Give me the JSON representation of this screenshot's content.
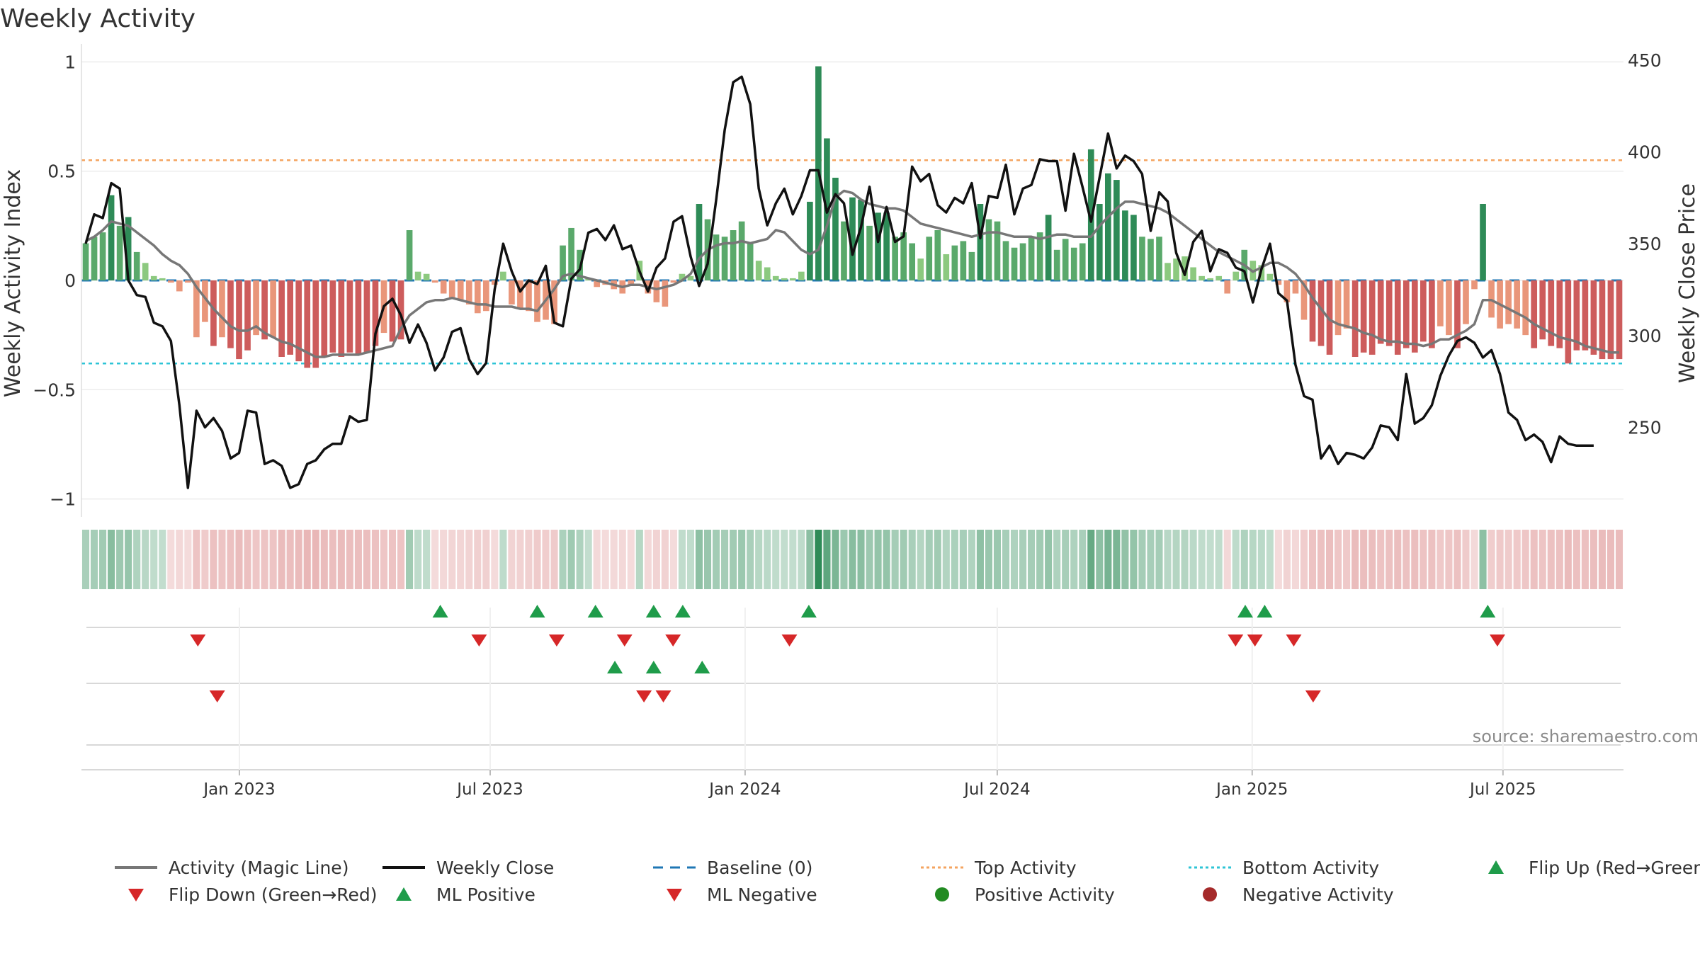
{
  "chart_data": {
    "type": "bar",
    "title": "Weekly Activity",
    "ylabel": "Weekly Activity Index",
    "y2label": "Weekly Close Price",
    "ylim": [
      -1.05,
      1.05
    ],
    "y2lim": [
      205,
      455
    ],
    "yticks": [
      1,
      0.5,
      0,
      -0.5,
      -1
    ],
    "ytick_labels": [
      "1",
      "0.5",
      "0",
      "−0.5",
      "−1"
    ],
    "y2ticks": [
      450,
      400,
      350,
      300,
      250
    ],
    "x_start": "2022-09-09",
    "x_end": "2025-09-26",
    "xticks": [
      {
        "date": "2023-01-01",
        "label": "Jan 2023"
      },
      {
        "date": "2023-07-01",
        "label": "Jul 2023"
      },
      {
        "date": "2024-01-01",
        "label": "Jan 2024"
      },
      {
        "date": "2024-07-01",
        "label": "Jul 2024"
      },
      {
        "date": "2025-01-01",
        "label": "Jan 2025"
      },
      {
        "date": "2025-07-01",
        "label": "Jul 2025"
      }
    ],
    "reference_lines": {
      "baseline": 0,
      "top_activity": 0.55,
      "bottom_activity": -0.38
    },
    "colors": {
      "pos_strong": "#2e8b57",
      "pos_mid": "#5aa96b",
      "pos_light": "#8cc97f",
      "neg_strong": "#cd5c5c",
      "neg_light": "#e9967a",
      "magic_line": "#777777",
      "close_line": "#111111",
      "baseline": "#1f77b4",
      "top": "#f4a460",
      "bottom": "#2ec4d6",
      "flip_up": "#1f9c4a",
      "flip_down": "#d62728",
      "pos_activity": "#228b22",
      "neg_activity": "#a52a2a"
    },
    "series": [
      {
        "name": "Weekly Activity Index",
        "type": "bar",
        "values": [
          0.17,
          0.2,
          0.22,
          0.39,
          0.25,
          0.29,
          0.13,
          0.08,
          0.02,
          0.01,
          -0.01,
          -0.05,
          -0.01,
          -0.26,
          -0.19,
          -0.3,
          -0.26,
          -0.31,
          -0.36,
          -0.32,
          -0.25,
          -0.27,
          -0.26,
          -0.35,
          -0.34,
          -0.37,
          -0.4,
          -0.4,
          -0.35,
          -0.33,
          -0.35,
          -0.33,
          -0.34,
          -0.33,
          -0.3,
          -0.24,
          -0.28,
          -0.27,
          0.23,
          0.04,
          0.03,
          -0.01,
          -0.06,
          -0.08,
          -0.09,
          -0.11,
          -0.15,
          -0.14,
          -0.02,
          0.04,
          -0.11,
          -0.13,
          -0.14,
          -0.19,
          -0.18,
          -0.2,
          0.16,
          0.24,
          0.14,
          0.01,
          -0.03,
          -0.02,
          -0.04,
          -0.06,
          -0.02,
          0.09,
          -0.06,
          -0.1,
          -0.12,
          -0.01,
          0.03,
          0.02,
          0.35,
          0.28,
          0.21,
          0.2,
          0.23,
          0.27,
          0.17,
          0.09,
          0.06,
          0.02,
          0.01,
          0.01,
          0.04,
          0.36,
          0.98,
          0.65,
          0.47,
          0.27,
          0.38,
          0.37,
          0.25,
          0.31,
          0.31,
          0.2,
          0.22,
          0.17,
          0.1,
          0.2,
          0.23,
          0.12,
          0.16,
          0.18,
          0.13,
          0.35,
          0.28,
          0.27,
          0.18,
          0.15,
          0.17,
          0.2,
          0.22,
          0.3,
          0.14,
          0.19,
          0.15,
          0.17,
          0.6,
          0.35,
          0.49,
          0.46,
          0.32,
          0.3,
          0.2,
          0.19,
          0.2,
          0.08,
          0.1,
          0.11,
          0.06,
          0.02,
          0.01,
          0.02,
          -0.06,
          0.04,
          0.14,
          0.09,
          0.07,
          0.03,
          -0.02,
          -0.1,
          -0.06,
          -0.18,
          -0.28,
          -0.3,
          -0.34,
          -0.25,
          -0.22,
          -0.35,
          -0.33,
          -0.34,
          -0.29,
          -0.3,
          -0.34,
          -0.31,
          -0.33,
          -0.28,
          -0.31,
          -0.21,
          -0.25,
          -0.31,
          -0.2,
          -0.04,
          0.35,
          -0.17,
          -0.22,
          -0.2,
          -0.22,
          -0.25,
          -0.31,
          -0.27,
          -0.3,
          -0.31,
          -0.38,
          -0.32,
          -0.32,
          -0.34,
          -0.36,
          -0.36,
          -0.36
        ]
      },
      {
        "name": "Activity (Magic Line)",
        "type": "line",
        "values": [
          0.18,
          0.2,
          0.23,
          0.27,
          0.26,
          0.25,
          0.22,
          0.19,
          0.16,
          0.12,
          0.09,
          0.07,
          0.03,
          -0.03,
          -0.08,
          -0.13,
          -0.17,
          -0.21,
          -0.23,
          -0.23,
          -0.21,
          -0.24,
          -0.26,
          -0.28,
          -0.29,
          -0.31,
          -0.33,
          -0.35,
          -0.35,
          -0.34,
          -0.34,
          -0.34,
          -0.34,
          -0.33,
          -0.32,
          -0.31,
          -0.3,
          -0.22,
          -0.16,
          -0.13,
          -0.1,
          -0.09,
          -0.09,
          -0.08,
          -0.09,
          -0.1,
          -0.11,
          -0.11,
          -0.12,
          -0.12,
          -0.12,
          -0.13,
          -0.13,
          -0.14,
          -0.09,
          -0.04,
          0.02,
          0.03,
          0.02,
          0.01,
          0.0,
          -0.01,
          -0.02,
          -0.03,
          -0.02,
          -0.02,
          -0.03,
          -0.04,
          -0.03,
          -0.02,
          0.0,
          0.03,
          0.1,
          0.14,
          0.16,
          0.17,
          0.17,
          0.18,
          0.17,
          0.18,
          0.19,
          0.23,
          0.22,
          0.18,
          0.14,
          0.12,
          0.14,
          0.25,
          0.38,
          0.41,
          0.4,
          0.37,
          0.35,
          0.34,
          0.33,
          0.33,
          0.32,
          0.29,
          0.26,
          0.25,
          0.24,
          0.23,
          0.22,
          0.21,
          0.2,
          0.21,
          0.22,
          0.22,
          0.21,
          0.2,
          0.2,
          0.2,
          0.19,
          0.2,
          0.21,
          0.21,
          0.2,
          0.2,
          0.2,
          0.25,
          0.29,
          0.33,
          0.36,
          0.36,
          0.35,
          0.34,
          0.33,
          0.31,
          0.28,
          0.25,
          0.22,
          0.19,
          0.16,
          0.13,
          0.11,
          0.09,
          0.07,
          0.04,
          0.06,
          0.08,
          0.08,
          0.06,
          0.03,
          -0.02,
          -0.08,
          -0.13,
          -0.18,
          -0.2,
          -0.21,
          -0.22,
          -0.24,
          -0.25,
          -0.27,
          -0.28,
          -0.28,
          -0.29,
          -0.29,
          -0.3,
          -0.29,
          -0.27,
          -0.27,
          -0.25,
          -0.23,
          -0.2,
          -0.09,
          -0.09,
          -0.11,
          -0.13,
          -0.15,
          -0.17,
          -0.2,
          -0.22,
          -0.24,
          -0.26,
          -0.27,
          -0.28,
          -0.3,
          -0.31,
          -0.32,
          -0.33,
          -0.33
        ]
      },
      {
        "name": "Weekly Close",
        "type": "line",
        "axis": "y2",
        "values": [
          350,
          366,
          364,
          383,
          380,
          330,
          322,
          321,
          307,
          305,
          297,
          262,
          217,
          259,
          250,
          255,
          248,
          233,
          236,
          259,
          258,
          230,
          232,
          229,
          217,
          219,
          230,
          232,
          238,
          241,
          241,
          256,
          253,
          254,
          301,
          316,
          320,
          311,
          296,
          306,
          296,
          281,
          288,
          302,
          304,
          287,
          279,
          285,
          325,
          350,
          335,
          324,
          330,
          328,
          338,
          307,
          305,
          331,
          336,
          356,
          358,
          352,
          360,
          347,
          349,
          335,
          324,
          337,
          342,
          362,
          365,
          343,
          327,
          339,
          374,
          412,
          438,
          441,
          426,
          380,
          360,
          372,
          380,
          366,
          376,
          390,
          390,
          367,
          377,
          372,
          344,
          359,
          381,
          351,
          370,
          351,
          354,
          392,
          384,
          388,
          371,
          367,
          375,
          372,
          383,
          353,
          376,
          375,
          393,
          366,
          380,
          382,
          396,
          395,
          395,
          368,
          399,
          381,
          362,
          386,
          410,
          391,
          398,
          395,
          388,
          357,
          378,
          373,
          345,
          333,
          351,
          357,
          335,
          347,
          345,
          337,
          335,
          318,
          336,
          350,
          323,
          319,
          284,
          267,
          265,
          233,
          240,
          230,
          236,
          235,
          233,
          239,
          251,
          250,
          243,
          279,
          252,
          255,
          262,
          278,
          289,
          297,
          299,
          296,
          288,
          292,
          279,
          258,
          254,
          243,
          246,
          242,
          231,
          245,
          241,
          240,
          240,
          240
        ]
      }
    ],
    "heatmap_strip": {
      "label": "weekly activity color strip",
      "source": "Weekly Activity Index"
    },
    "signal_rows": [
      {
        "name": "Flip Up (Red→Green)",
        "marker": "triangle-up",
        "row": 1,
        "dates": [
          "2023-05-26",
          "2023-08-04",
          "2023-09-15",
          "2023-10-27",
          "2023-11-17",
          "2024-02-16",
          "2024-12-27",
          "2025-01-10",
          "2025-06-20"
        ]
      },
      {
        "name": "Flip Down (Green→Red)",
        "marker": "triangle-down",
        "row": 1,
        "dates": [
          "2022-12-02",
          "2023-06-23",
          "2023-08-18",
          "2023-10-06",
          "2023-11-10",
          "2024-02-02",
          "2024-12-20",
          "2025-01-03",
          "2025-01-31",
          "2025-06-27"
        ]
      },
      {
        "name": "ML Positive",
        "marker": "triangle-up",
        "row": 2,
        "dates": [
          "2023-09-29",
          "2023-10-27",
          "2023-12-01"
        ]
      },
      {
        "name": "ML Negative",
        "marker": "triangle-down",
        "row": 2,
        "dates": [
          "2022-12-16",
          "2023-10-20",
          "2023-11-03",
          "2025-02-14"
        ]
      }
    ],
    "legend": [
      {
        "label": "Activity (Magic Line)",
        "symbol": "line",
        "color": "#777777"
      },
      {
        "label": "Weekly Close",
        "symbol": "line",
        "color": "#111111"
      },
      {
        "label": "Baseline (0)",
        "symbol": "dash",
        "color": "#1f77b4"
      },
      {
        "label": "Top Activity",
        "symbol": "dot",
        "color": "#f4a460"
      },
      {
        "label": "Bottom Activity",
        "symbol": "dot",
        "color": "#2ec4d6"
      },
      {
        "label": "Flip Up (Red→Green)",
        "symbol": "triangle-up",
        "color": "#1f9c4a"
      },
      {
        "label": "Flip Down (Green→Red)",
        "symbol": "triangle-down",
        "color": "#d62728"
      },
      {
        "label": "ML Positive",
        "symbol": "triangle-up",
        "color": "#1f9c4a"
      },
      {
        "label": "ML Negative",
        "symbol": "triangle-down",
        "color": "#d62728"
      },
      {
        "label": "Positive Activity",
        "symbol": "circle",
        "color": "#228b22"
      },
      {
        "label": "Negative Activity",
        "symbol": "circle",
        "color": "#a52a2a"
      }
    ],
    "source_note": "source: sharemaestro.com"
  }
}
